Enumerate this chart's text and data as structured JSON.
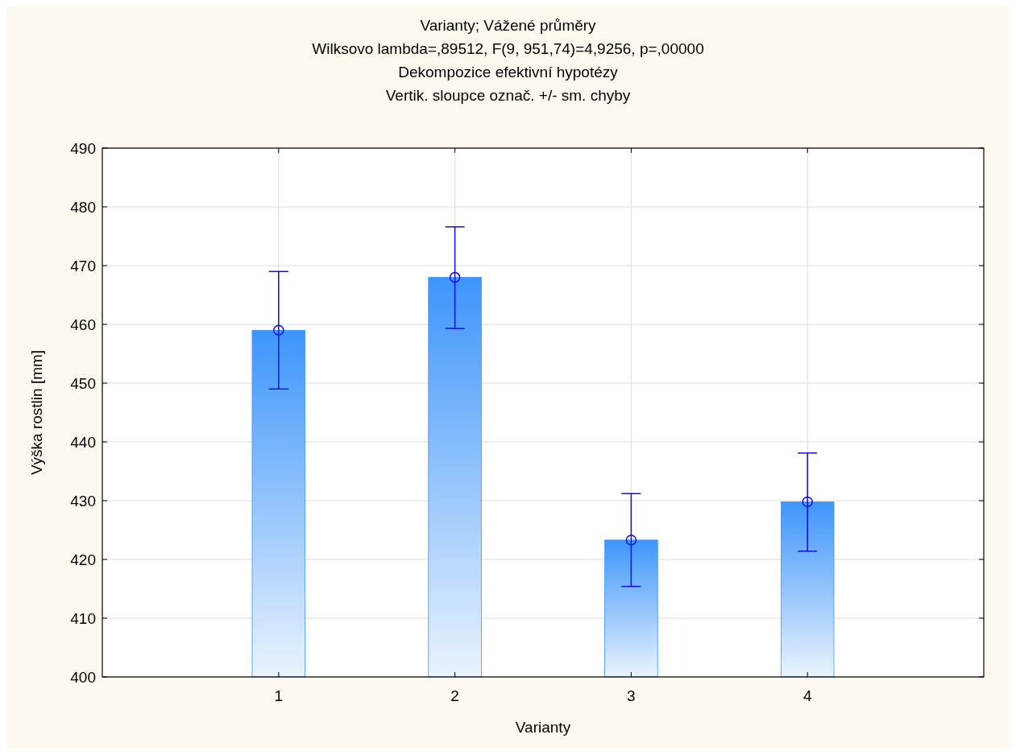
{
  "chart_data": {
    "type": "bar",
    "title": "Varianty; Vážené průměry",
    "subtitle": "Wilksovo lambda=,89512, F(9, 951,74)=4,9256, p=,00000\nDekompozice efektivní hypotézy\nVertik. sloupce označ. +/- sm. chyby",
    "xlabel": "Varianty",
    "ylabel": "Výška rostlin [mm]",
    "categories": [
      "1",
      "2",
      "3",
      "4"
    ],
    "series": [
      {
        "color": "#3d95fb",
        "values": [
          459.0,
          468.0,
          423.3,
          429.8
        ],
        "errors": [
          [
            449.0,
            469.0
          ],
          [
            459.3,
            476.6
          ],
          [
            415.4,
            431.2
          ],
          [
            421.4,
            438.1
          ]
        ]
      },
      {
        "type": "scatter",
        "color": "#1010d8",
        "x": [
          "1",
          "2",
          "3",
          "4"
        ],
        "values": [
          459.0,
          468.0,
          423.3,
          429.8
        ],
        "marker": "circle"
      }
    ],
    "ylim": [
      400,
      490
    ],
    "yticks": [
      400,
      410,
      420,
      430,
      440,
      450,
      460,
      470,
      480,
      490
    ],
    "grid": true
  }
}
